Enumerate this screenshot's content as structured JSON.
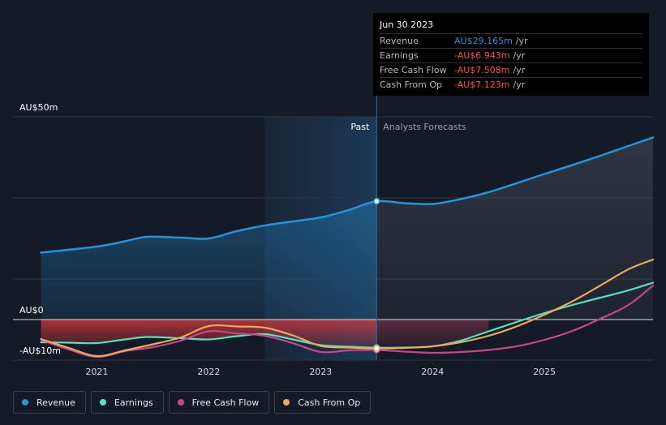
{
  "chart_data": {
    "type": "line",
    "title": "",
    "y_axis": {
      "label_top": "AU$50m",
      "label_zero": "AU$0",
      "label_neg": "-AU$10m",
      "ylim": [
        -10,
        50
      ]
    },
    "x_axis": {
      "tick_labels": [
        "2021",
        "2022",
        "2023",
        "2024",
        "2025"
      ],
      "tick_values": [
        2021,
        2022,
        2023,
        2024,
        2025
      ],
      "xlim": [
        2020.25,
        2025.97
      ]
    },
    "regions": {
      "past_label": "Past",
      "forecast_label": "Analysts Forecasts",
      "divider_x": 2023.5,
      "highlight_start": 2022.5
    },
    "series": [
      {
        "name": "Revenue",
        "color": "#2394df",
        "points": [
          [
            2020.5,
            16.5
          ],
          [
            2021.0,
            18.0
          ],
          [
            2021.25,
            19.3
          ],
          [
            2021.45,
            20.4
          ],
          [
            2021.75,
            20.2
          ],
          [
            2022.0,
            20.0
          ],
          [
            2022.25,
            21.8
          ],
          [
            2022.5,
            23.2
          ],
          [
            2022.75,
            24.2
          ],
          [
            2023.0,
            25.2
          ],
          [
            2023.25,
            27.0
          ],
          [
            2023.5,
            29.165
          ],
          [
            2023.75,
            28.7
          ],
          [
            2024.0,
            28.5
          ],
          [
            2024.25,
            29.7
          ],
          [
            2024.5,
            31.4
          ],
          [
            2024.75,
            33.6
          ],
          [
            2025.0,
            35.9
          ],
          [
            2025.25,
            38.1
          ],
          [
            2025.5,
            40.4
          ],
          [
            2025.75,
            42.8
          ],
          [
            2025.97,
            44.9
          ]
        ]
      },
      {
        "name": "Earnings",
        "color": "#58e1c1",
        "points": [
          [
            2020.5,
            -5.6
          ],
          [
            2020.75,
            -5.7
          ],
          [
            2021.0,
            -5.8
          ],
          [
            2021.25,
            -4.9
          ],
          [
            2021.45,
            -4.3
          ],
          [
            2021.75,
            -4.6
          ],
          [
            2022.0,
            -4.9
          ],
          [
            2022.25,
            -4.1
          ],
          [
            2022.5,
            -3.6
          ],
          [
            2022.75,
            -4.9
          ],
          [
            2023.0,
            -6.3
          ],
          [
            2023.25,
            -6.7
          ],
          [
            2023.5,
            -6.943
          ],
          [
            2023.75,
            -6.9
          ],
          [
            2024.0,
            -6.6
          ],
          [
            2024.25,
            -5.2
          ],
          [
            2024.5,
            -2.9
          ],
          [
            2024.75,
            -0.6
          ],
          [
            2025.0,
            1.6
          ],
          [
            2025.25,
            3.6
          ],
          [
            2025.5,
            5.4
          ],
          [
            2025.75,
            7.2
          ],
          [
            2025.97,
            9.1
          ]
        ]
      },
      {
        "name": "Free Cash Flow",
        "color": "#c9468c",
        "points": [
          [
            2020.5,
            -5.0
          ],
          [
            2020.75,
            -7.4
          ],
          [
            2021.0,
            -9.2
          ],
          [
            2021.25,
            -7.8
          ],
          [
            2021.5,
            -6.8
          ],
          [
            2021.75,
            -5.2
          ],
          [
            2022.0,
            -2.9
          ],
          [
            2022.25,
            -3.4
          ],
          [
            2022.5,
            -4.0
          ],
          [
            2022.75,
            -5.8
          ],
          [
            2023.0,
            -8.0
          ],
          [
            2023.25,
            -7.6
          ],
          [
            2023.5,
            -7.508
          ],
          [
            2023.75,
            -7.9
          ],
          [
            2024.0,
            -8.2
          ],
          [
            2024.25,
            -8.0
          ],
          [
            2024.5,
            -7.5
          ],
          [
            2024.75,
            -6.6
          ],
          [
            2025.0,
            -5.0
          ],
          [
            2025.25,
            -2.8
          ],
          [
            2025.5,
            0.2
          ],
          [
            2025.75,
            3.6
          ],
          [
            2025.97,
            8.4
          ]
        ]
      },
      {
        "name": "Cash From Op",
        "color": "#e9a95e",
        "points": [
          [
            2020.5,
            -4.8
          ],
          [
            2020.75,
            -7.0
          ],
          [
            2021.0,
            -9.0
          ],
          [
            2021.25,
            -7.6
          ],
          [
            2021.5,
            -6.1
          ],
          [
            2021.75,
            -4.4
          ],
          [
            2022.0,
            -1.6
          ],
          [
            2022.25,
            -1.7
          ],
          [
            2022.5,
            -2.0
          ],
          [
            2022.75,
            -3.9
          ],
          [
            2023.0,
            -6.5
          ],
          [
            2023.25,
            -6.9
          ],
          [
            2023.5,
            -7.123
          ],
          [
            2023.75,
            -7.0
          ],
          [
            2024.0,
            -6.6
          ],
          [
            2024.25,
            -5.6
          ],
          [
            2024.5,
            -4.0
          ],
          [
            2024.75,
            -1.7
          ],
          [
            2025.0,
            1.2
          ],
          [
            2025.25,
            4.5
          ],
          [
            2025.5,
            8.4
          ],
          [
            2025.75,
            12.4
          ],
          [
            2025.97,
            14.8
          ]
        ]
      }
    ],
    "hover_index_x": 2023.5
  },
  "tooltip": {
    "date": "Jun 30 2023",
    "rows": [
      {
        "label": "Revenue",
        "value": "AU$29.165m",
        "unit": "/yr",
        "color": "#2394df"
      },
      {
        "label": "Earnings",
        "value": "-AU$6.943m",
        "unit": "/yr",
        "color": "#ff4d4d"
      },
      {
        "label": "Free Cash Flow",
        "value": "-AU$7.508m",
        "unit": "/yr",
        "color": "#ff4d4d"
      },
      {
        "label": "Cash From Op",
        "value": "-AU$7.123m",
        "unit": "/yr",
        "color": "#ff4d4d"
      }
    ]
  },
  "legend": [
    {
      "label": "Revenue",
      "color": "#2394df"
    },
    {
      "label": "Earnings",
      "color": "#58e1c1"
    },
    {
      "label": "Free Cash Flow",
      "color": "#c9468c"
    },
    {
      "label": "Cash From Op",
      "color": "#e9a95e"
    }
  ]
}
